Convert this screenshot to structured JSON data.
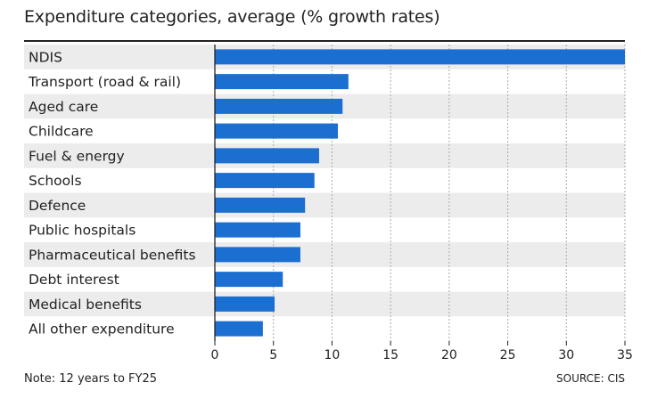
{
  "chart_data": {
    "type": "bar",
    "orientation": "horizontal",
    "title": "Expenditure categories, average (% growth rates)",
    "categories": [
      "NDIS",
      "Transport (road & rail)",
      "Aged care",
      "Childcare",
      "Fuel & energy",
      "Schools",
      "Defence",
      "Public hospitals",
      "Pharmaceutical benefits",
      "Debt interest",
      "Medical benefits",
      "All other expenditure"
    ],
    "values": [
      35.5,
      11.4,
      10.9,
      10.5,
      8.9,
      8.5,
      7.7,
      7.3,
      7.3,
      5.8,
      5.1,
      4.1
    ],
    "xlim": [
      0,
      35
    ],
    "xticks": [
      0,
      5,
      10,
      15,
      20,
      25,
      30,
      35
    ],
    "xlabel": "",
    "ylabel": "",
    "grid": "vertical dashed",
    "legend": "none",
    "note": "Note: 12 years to FY25",
    "source": "SOURCE: CIS",
    "colors": {
      "bar": "#1a6fd1",
      "band": "#ececec",
      "grid": "#aaaaaa",
      "axis": "#222222"
    }
  }
}
